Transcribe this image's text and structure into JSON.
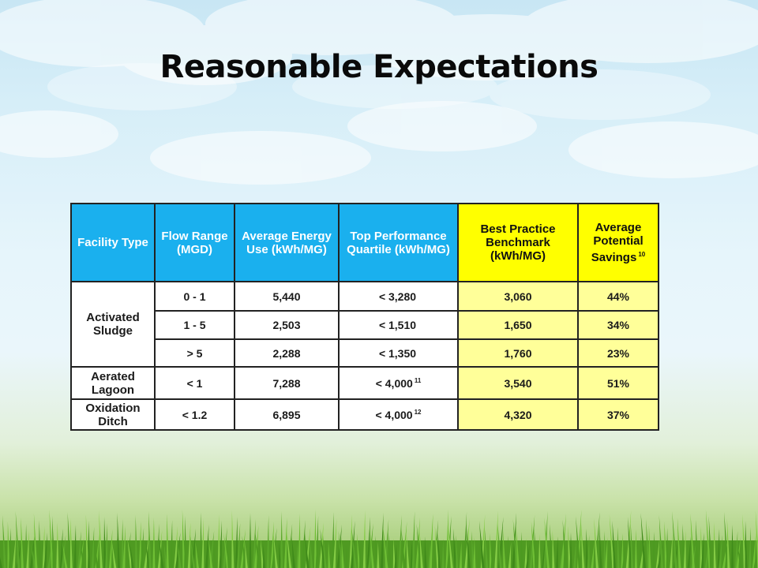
{
  "slide": {
    "title": "Reasonable Expectations"
  },
  "table": {
    "headers": {
      "facility_type": "Facility Type",
      "flow_range": "Flow Range (MGD)",
      "avg_energy": "Average Energy Use (kWh/MG)",
      "top_quartile": "Top Performance Quartile (kWh/MG)",
      "best_practice": "Best Practice Benchmark (kWh/MG)",
      "avg_savings": "Average Potential Savings",
      "avg_savings_note": "10"
    },
    "rows": [
      {
        "facility": "Activated Sludge",
        "flow": "0 - 1",
        "energy": "5,440",
        "quartile": "< 3,280",
        "quartile_note": "",
        "benchmark": "3,060",
        "savings": "44%"
      },
      {
        "facility": "",
        "flow": "1 - 5",
        "energy": "2,503",
        "quartile": "< 1,510",
        "quartile_note": "",
        "benchmark": "1,650",
        "savings": "34%"
      },
      {
        "facility": "",
        "flow": "> 5",
        "energy": "2,288",
        "quartile": "< 1,350",
        "quartile_note": "",
        "benchmark": "1,760",
        "savings": "23%"
      },
      {
        "facility": "Aerated Lagoon",
        "flow": "< 1",
        "energy": "7,288",
        "quartile": "< 4,000",
        "quartile_note": "11",
        "benchmark": "3,540",
        "savings": "51%"
      },
      {
        "facility": "Oxidation Ditch",
        "flow": "< 1.2",
        "energy": "6,895",
        "quartile": "< 4,000",
        "quartile_note": "12",
        "benchmark": "4,320",
        "savings": "37%"
      }
    ]
  },
  "colors": {
    "header_blue": "#1ab0ee",
    "header_yellow": "#ffff00",
    "cell_yellow": "#ffff99"
  }
}
